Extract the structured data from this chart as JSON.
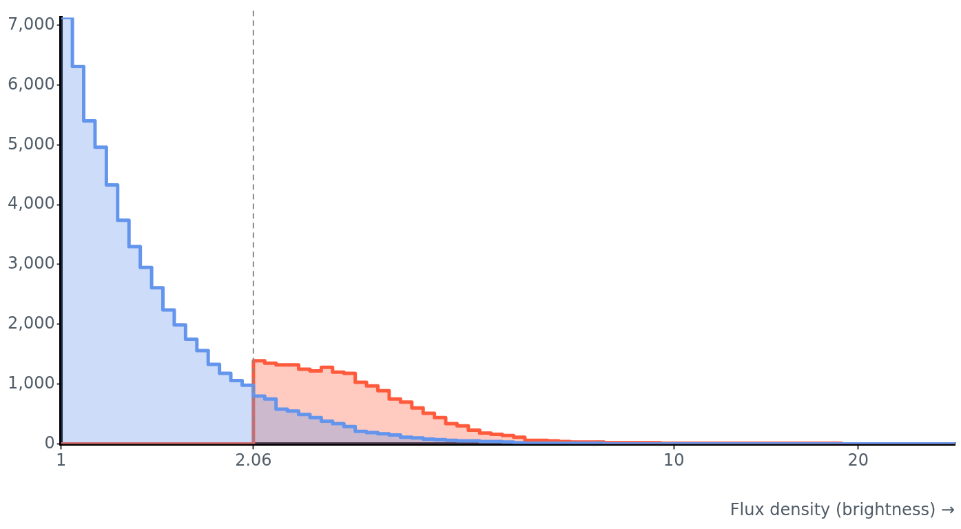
{
  "chart_data": {
    "type": "histogram",
    "xlabel": "Flux density (brightness) →",
    "bins": [
      1,
      1.0434,
      1.0887,
      1.136,
      1.1854,
      1.2368,
      1.2906,
      1.3466,
      1.4051,
      1.4661,
      1.5298,
      1.5963,
      1.6656,
      1.738,
      1.8135,
      1.8922,
      1.9744,
      2.06,
      2.1495,
      2.2428,
      2.3403,
      2.4419,
      2.5478,
      2.6586,
      2.774,
      2.8945,
      3.0202,
      3.1514,
      3.2884,
      3.431,
      3.5804,
      3.736,
      3.8983,
      4.0673,
      4.2436,
      4.4277,
      4.62,
      4.8206,
      5.0304,
      5.2485,
      5.4768,
      5.7144,
      5.9627,
      6.2216,
      6.4918,
      6.774,
      7.0681,
      7.3754,
      7.6958,
      8.0298,
      8.3788,
      8.7418,
      9.1212,
      9.5172,
      9.9307,
      10.3626,
      10.812,
      11.282,
      11.772,
      12.283,
      12.816,
      13.373,
      13.955,
      14.56,
      15.193,
      15.854,
      16.542,
      17.26,
      18.008,
      18.79,
      19.606,
      20.457,
      21.347,
      22.273,
      23.241,
      24.25,
      25.305,
      26.402,
      27.55,
      28.747
    ],
    "series": [
      {
        "color": "#6495ed",
        "values": [
          7130,
          6310,
          5400,
          4960,
          4330,
          3740,
          3300,
          2950,
          2610,
          2240,
          1990,
          1750,
          1560,
          1330,
          1180,
          1060,
          980,
          800,
          750,
          580,
          550,
          490,
          440,
          380,
          340,
          290,
          210,
          190,
          170,
          150,
          110,
          100,
          80,
          70,
          60,
          50,
          50,
          40,
          40,
          30,
          20,
          10,
          10,
          10,
          10,
          10,
          10,
          10,
          0,
          0,
          0,
          0,
          0,
          0,
          0,
          0,
          0,
          0,
          0,
          0,
          0,
          0,
          0,
          0,
          0,
          0,
          0,
          0,
          0,
          0,
          0,
          0,
          0,
          0,
          0,
          0,
          0,
          0,
          0
        ]
      },
      {
        "color": "#ff5a3c",
        "values": [
          0,
          0,
          0,
          0,
          0,
          0,
          0,
          0,
          0,
          0,
          0,
          0,
          0,
          0,
          0,
          0,
          0,
          1390,
          1350,
          1320,
          1320,
          1250,
          1220,
          1280,
          1200,
          1180,
          1030,
          970,
          890,
          750,
          700,
          600,
          510,
          440,
          340,
          300,
          230,
          180,
          160,
          140,
          110,
          60,
          60,
          50,
          40,
          30,
          30,
          30,
          20,
          20,
          20,
          20,
          20,
          10,
          10,
          10,
          10,
          10,
          10,
          10,
          10,
          10,
          10,
          10,
          10,
          10,
          10,
          10,
          10,
          0,
          0,
          0,
          0,
          0,
          0,
          0,
          0,
          0,
          0
        ]
      }
    ],
    "log": "x",
    "xlim": [
      1,
      28.747
    ],
    "xticks": [
      1,
      2.06,
      10,
      20
    ],
    "ylim": [
      0,
      7130
    ],
    "yticks": [
      0,
      {
        "value": 1000,
        "label": "1,000"
      },
      {
        "value": 2000,
        "label": "2,000"
      },
      {
        "value": 3000,
        "label": "3,000"
      },
      {
        "value": 4000,
        "label": "4,000"
      },
      {
        "value": 5000,
        "label": "5,000"
      },
      {
        "value": 6000,
        "label": "6,000"
      },
      {
        "value": 7000,
        "label": "7,000"
      }
    ],
    "ref_lines": [
      {
        "axis": "x",
        "value": 2.06,
        "color": "#888888",
        "line_style": "dashed"
      }
    ],
    "grid": false,
    "legend": false
  }
}
